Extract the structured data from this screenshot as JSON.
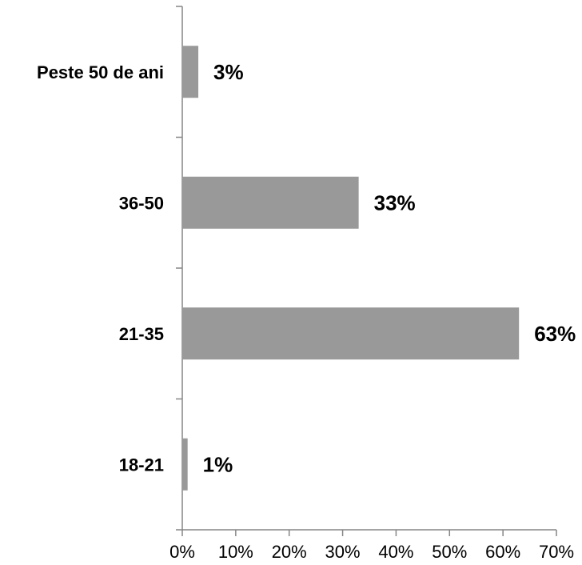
{
  "chart_data": {
    "type": "bar",
    "orientation": "horizontal",
    "categories": [
      "18-21",
      "21-35",
      "36-50",
      "Peste 50 de ani"
    ],
    "values": [
      1,
      63,
      33,
      3
    ],
    "data_labels": [
      "1%",
      "63%",
      "33%",
      "3%"
    ],
    "x_ticks": [
      "0%",
      "10%",
      "20%",
      "30%",
      "40%",
      "50%",
      "60%",
      "70%"
    ],
    "xlim": [
      0,
      70
    ],
    "title": "",
    "xlabel": "",
    "ylabel": "",
    "grid": false,
    "bar_color": "#999999"
  }
}
